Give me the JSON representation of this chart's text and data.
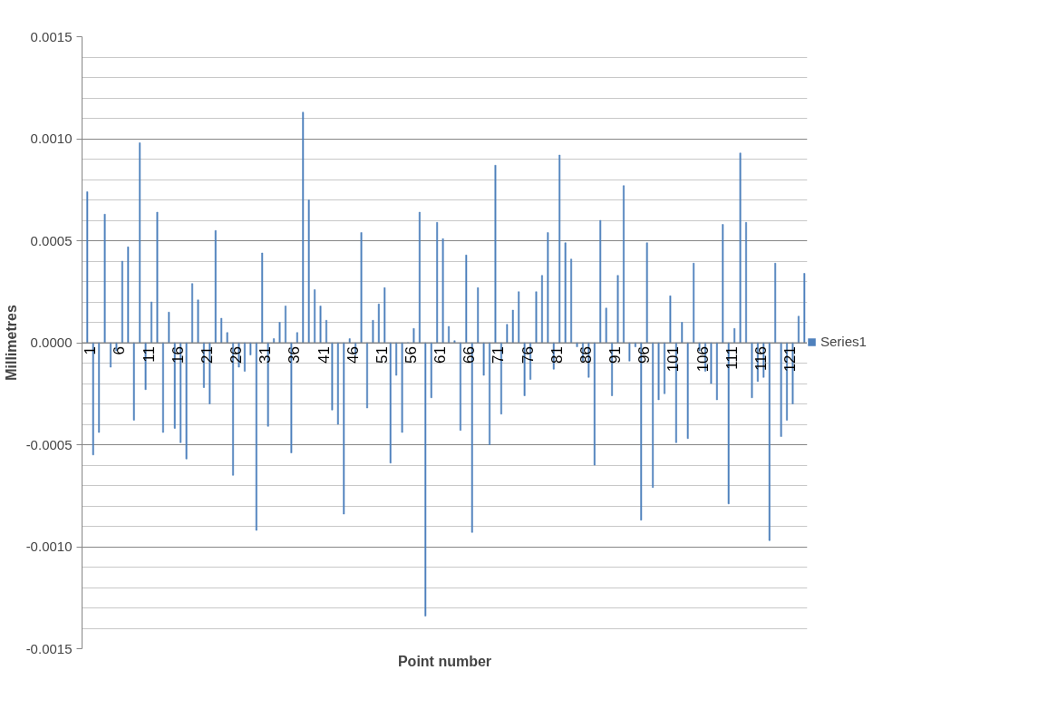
{
  "chart_data": {
    "type": "bar",
    "xlabel": "Point number",
    "ylabel": "Millimetres",
    "categories": [
      "1",
      null,
      null,
      null,
      null,
      "6",
      null,
      null,
      null,
      null,
      "11",
      null,
      null,
      null,
      null,
      "16",
      null,
      null,
      null,
      null,
      "21",
      null,
      null,
      null,
      null,
      "26",
      null,
      null,
      null,
      null,
      "31",
      null,
      null,
      null,
      null,
      "36",
      null,
      null,
      null,
      null,
      "41",
      null,
      null,
      null,
      null,
      "46",
      null,
      null,
      null,
      null,
      "51",
      null,
      null,
      null,
      null,
      "56",
      null,
      null,
      null,
      null,
      "61",
      null,
      null,
      null,
      null,
      "66",
      null,
      null,
      null,
      null,
      "71",
      null,
      null,
      null,
      null,
      "76",
      null,
      null,
      null,
      null,
      "81",
      null,
      null,
      null,
      null,
      "86",
      null,
      null,
      null,
      null,
      "91",
      null,
      null,
      null,
      null,
      "96",
      null,
      null,
      null,
      null,
      "101",
      null,
      null,
      null,
      null,
      "106",
      null,
      null,
      null,
      null,
      "111",
      null,
      null,
      null,
      null,
      "116",
      null,
      null,
      null,
      null,
      "121",
      null,
      null,
      null
    ],
    "series": [
      {
        "name": "Series1",
        "color": "#4f81bd",
        "values": [
          0.00074,
          -0.00055,
          -0.00044,
          0.00063,
          -0.00012,
          -4e-05,
          0.0004,
          0.00047,
          -0.00038,
          0.00098,
          -0.00023,
          0.0002,
          0.00064,
          -0.00044,
          0.00015,
          -0.00042,
          -0.00049,
          -0.00057,
          0.00029,
          0.00021,
          -0.00022,
          -0.0003,
          0.00055,
          0.00012,
          5e-05,
          -0.00065,
          -0.00012,
          -0.00014,
          -6e-05,
          -0.00092,
          0.00044,
          -0.00041,
          2e-05,
          0.0001,
          0.00018,
          -0.00054,
          5e-05,
          0.00113,
          0.0007,
          0.00026,
          0.00018,
          0.00011,
          -0.00033,
          -0.0004,
          -0.00084,
          2e-05,
          -6e-05,
          0.00054,
          -0.00032,
          0.00011,
          0.00019,
          0.00027,
          -0.00059,
          -0.00016,
          -0.00044,
          0,
          7e-05,
          0.00064,
          -0.00134,
          -0.00027,
          0.00059,
          0.00051,
          8e-05,
          1e-05,
          -0.00043,
          0.00043,
          -0.00093,
          0.00027,
          -0.00016,
          -0.0005,
          0.00087,
          -0.00035,
          9e-05,
          0.00016,
          0.00025,
          -0.00026,
          -0.00018,
          0.00025,
          0.00033,
          0.00054,
          -0.00013,
          0.00092,
          0.00049,
          0.00041,
          -2e-05,
          -9e-05,
          -0.00017,
          -0.0006,
          0.0006,
          0.00017,
          -0.00026,
          0.00033,
          0.00077,
          -9e-05,
          -2e-05,
          -0.00087,
          0.00049,
          -0.00071,
          -0.00028,
          -0.00025,
          0.00023,
          -0.00049,
          0.0001,
          -0.00047,
          0.00039,
          -4e-05,
          -0.00014,
          -0.0002,
          -0.00028,
          0.00058,
          -0.00079,
          7e-05,
          0.00093,
          0.00059,
          -0.00027,
          -0.00019,
          -0.00017,
          -0.00097,
          0.00039,
          -0.00046,
          -0.00038,
          -0.0003,
          0.00013,
          0.00034
        ]
      }
    ],
    "ylim": [
      -0.0015,
      0.0015
    ],
    "yticks": [
      {
        "value": -0.0015,
        "label": "-0.0015"
      },
      {
        "value": -0.0014,
        "label": null
      },
      {
        "value": -0.0013,
        "label": null
      },
      {
        "value": -0.0012,
        "label": null
      },
      {
        "value": -0.0011,
        "label": null
      },
      {
        "value": -0.001,
        "label": "-0.0010"
      },
      {
        "value": -0.0009,
        "label": null
      },
      {
        "value": -0.0008,
        "label": null
      },
      {
        "value": -0.0007,
        "label": null
      },
      {
        "value": -0.0006,
        "label": null
      },
      {
        "value": -0.0005,
        "label": "-0.0005"
      },
      {
        "value": -0.0004,
        "label": null
      },
      {
        "value": -0.0003,
        "label": null
      },
      {
        "value": -0.0002,
        "label": null
      },
      {
        "value": -0.0001,
        "label": null
      },
      {
        "value": 0,
        "label": "0.0000"
      },
      {
        "value": 0.0001,
        "label": null
      },
      {
        "value": 0.0002,
        "label": null
      },
      {
        "value": 0.0003,
        "label": null
      },
      {
        "value": 0.0004,
        "label": null
      },
      {
        "value": 0.0005,
        "label": "0.0005"
      },
      {
        "value": 0.0006,
        "label": null
      },
      {
        "value": 0.0007,
        "label": null
      },
      {
        "value": 0.0008,
        "label": null
      },
      {
        "value": 0.0009,
        "label": null
      },
      {
        "value": 0.001,
        "label": "0.0010"
      },
      {
        "value": 0.0011,
        "label": null
      },
      {
        "value": 0.0012,
        "label": null
      },
      {
        "value": 0.0013,
        "label": null
      },
      {
        "value": 0.0014,
        "label": null
      },
      {
        "value": 0.0015,
        "label": "0.0015"
      }
    ],
    "grid": "y",
    "legend": "right"
  }
}
